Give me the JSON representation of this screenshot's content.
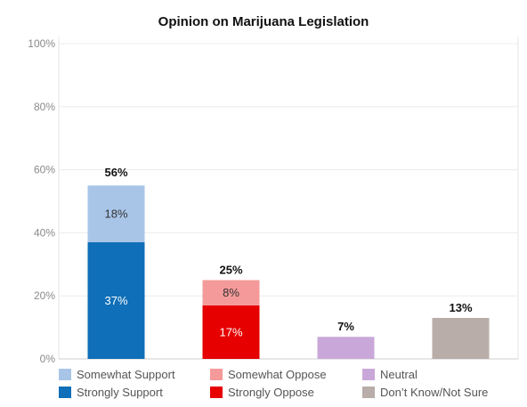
{
  "chart_data": {
    "type": "bar",
    "title": "Opinion on Marijuana Legislation",
    "ylim": [
      0,
      100
    ],
    "yticks": [
      "0%",
      "20%",
      "40%",
      "60%",
      "80%",
      "100%"
    ],
    "grid": true,
    "legend_position": "bottom",
    "categories": [
      {
        "total_label": "56%",
        "total": 56,
        "segments": [
          {
            "series": "Strongly Support",
            "value": 37,
            "label": "37%",
            "color": "#0f6fb8",
            "text_color": "#ffffff"
          },
          {
            "series": "Somewhat Support",
            "value": 18,
            "label": "18%",
            "color": "#a8c5e8",
            "text_color": "#333333"
          }
        ]
      },
      {
        "total_label": "25%",
        "total": 25,
        "segments": [
          {
            "series": "Strongly Oppose",
            "value": 17,
            "label": "17%",
            "color": "#e60000",
            "text_color": "#ffffff"
          },
          {
            "series": "Somewhat Oppose",
            "value": 8,
            "label": "8%",
            "color": "#f59a9a",
            "text_color": "#333333"
          }
        ]
      },
      {
        "total_label": "7%",
        "total": 7,
        "segments": [
          {
            "series": "Neutral",
            "value": 7,
            "label": "",
            "color": "#c9a8d9",
            "text_color": "#333333"
          }
        ]
      },
      {
        "total_label": "13%",
        "total": 13,
        "segments": [
          {
            "series": "Don’t Know/Not Sure",
            "value": 13,
            "label": "",
            "color": "#b8ada8",
            "text_color": "#333333"
          }
        ]
      }
    ],
    "legend": [
      {
        "name": "Somewhat Support",
        "color": "#a8c5e8"
      },
      {
        "name": "Somewhat Oppose",
        "color": "#f59a9a"
      },
      {
        "name": "Neutral",
        "color": "#c9a8d9"
      },
      {
        "name": "Strongly Support",
        "color": "#0f6fb8"
      },
      {
        "name": "Strongly Oppose",
        "color": "#e60000"
      },
      {
        "name": "Don’t Know/Not Sure",
        "color": "#b8ada8"
      }
    ]
  }
}
